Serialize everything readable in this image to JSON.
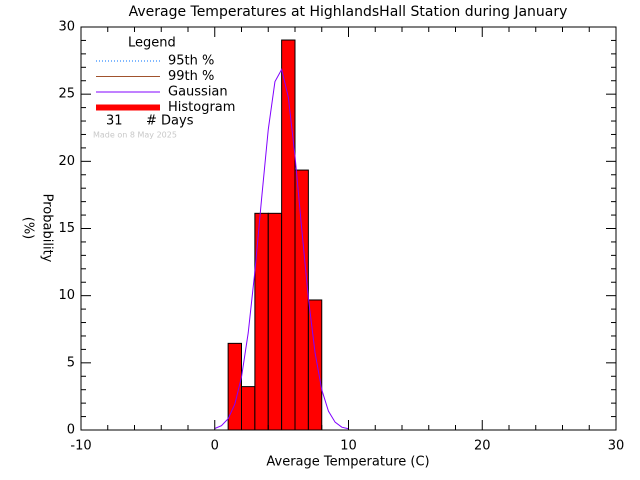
{
  "chart_data": {
    "type": "histogram",
    "title": "Average Temperatures at HighlandsHall Station during January",
    "xlabel": "Average Temperature (C)",
    "ylabel": [
      "Probability",
      "(%)"
    ],
    "bins": [
      1,
      2,
      3,
      4,
      5,
      6,
      7,
      8
    ],
    "values": [
      6.45,
      3.23,
      16.13,
      16.13,
      29.03,
      19.35,
      9.68
    ],
    "color": "#ff0000",
    "gaussian": {
      "color": "#8000ff",
      "x": [
        0,
        0.5,
        1,
        1.5,
        2,
        2.5,
        3,
        3.5,
        4,
        4.5,
        5,
        5.5,
        6,
        6.5,
        7,
        7.5,
        8,
        8.5,
        9,
        9.5,
        10
      ],
      "values": [
        0.11,
        0.32,
        0.84,
        1.92,
        3.94,
        7.22,
        11.8,
        17.19,
        22.36,
        25.93,
        26.84,
        24.78,
        20.41,
        14.99,
        9.82,
        5.75,
        3.0,
        1.4,
        0.58,
        0.21,
        0.09
      ]
    },
    "legend": {
      "title": "Legend",
      "entries": [
        {
          "name": "95th %",
          "color": "#0070ff",
          "style": "dotted"
        },
        {
          "name": "99th %",
          "color": "#a0522d",
          "style": "solid"
        },
        {
          "name": "Gaussian",
          "color": "#8000ff",
          "style": "solid"
        },
        {
          "name": "Histogram",
          "color": "#ff0000",
          "style": "thick"
        }
      ],
      "days": 31,
      "days_label": "# Days",
      "footnote": "Made on 8 May 2025"
    },
    "xlim": [
      -10,
      30
    ],
    "ylim": [
      0,
      30
    ],
    "xticks": [
      -10,
      0,
      10,
      20,
      30
    ],
    "yticks": [
      0,
      5,
      10,
      15,
      20,
      25,
      30
    ],
    "x_minor_ticks": [
      -8,
      -6,
      -4,
      -2,
      2,
      4,
      6,
      8,
      12,
      14,
      16,
      18,
      22,
      24,
      26,
      28
    ],
    "y_minor_ticks": [
      1,
      2,
      3,
      4,
      6,
      7,
      8,
      9,
      11,
      12,
      13,
      14,
      16,
      17,
      18,
      19,
      21,
      22,
      23,
      24,
      26,
      27,
      28,
      29
    ]
  }
}
